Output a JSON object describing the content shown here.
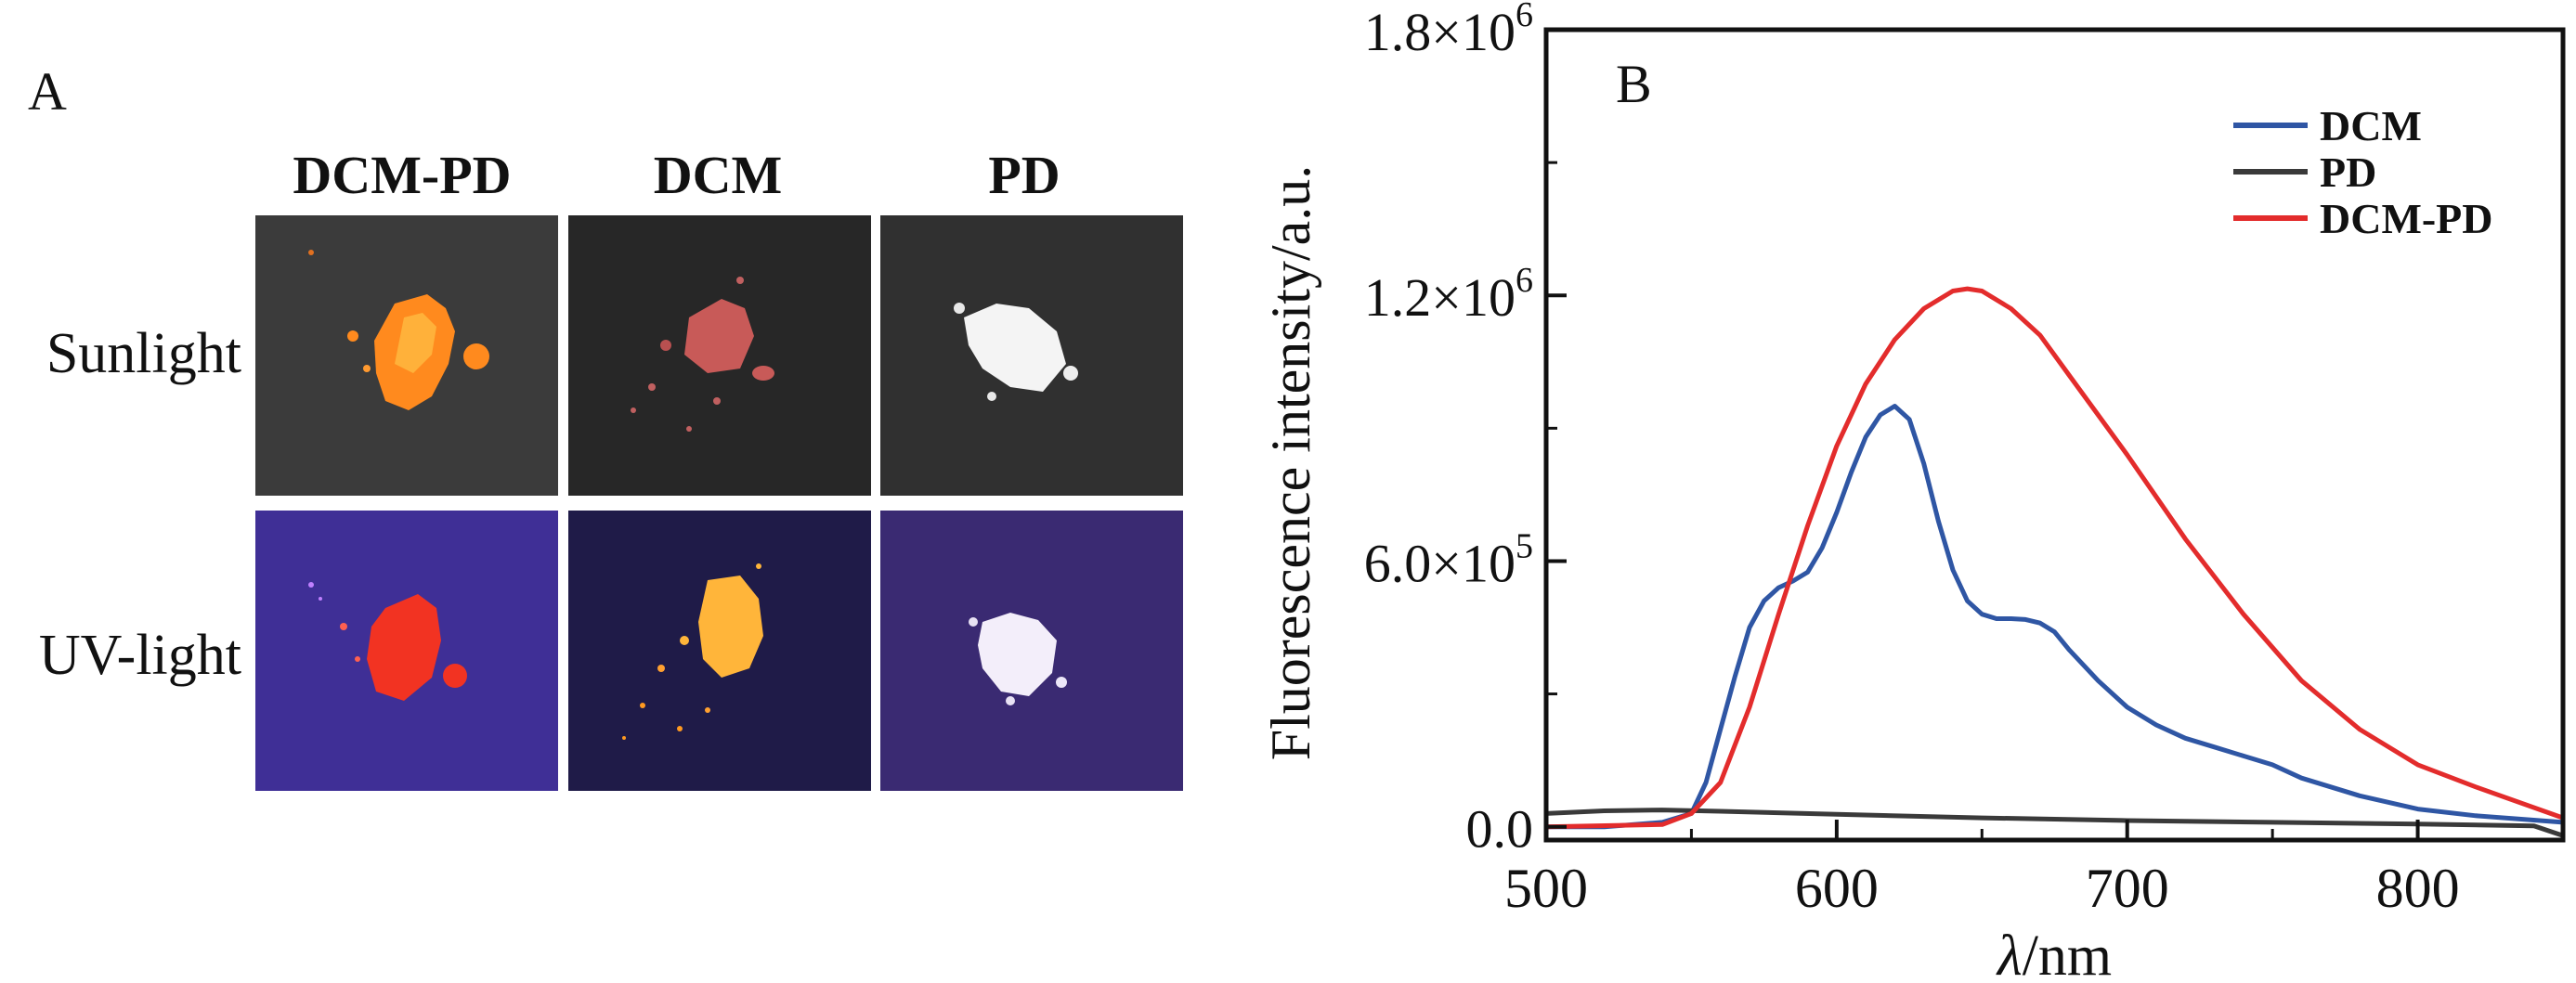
{
  "panel_a": {
    "letter": "A",
    "columns": [
      "DCM-PD",
      "DCM",
      "PD"
    ],
    "rows": [
      "Sunlight",
      "UV-light"
    ],
    "photos": [
      {
        "row": "Sunlight",
        "column": "DCM-PD",
        "background": "#3b3b3b",
        "sample_color": "#ff8a1e"
      },
      {
        "row": "Sunlight",
        "column": "DCM",
        "background": "#272727",
        "sample_color": "#c85a58"
      },
      {
        "row": "Sunlight",
        "column": "PD",
        "background": "#303030",
        "sample_color": "#f4f4f4"
      },
      {
        "row": "UV-light",
        "column": "DCM-PD",
        "background": "#3f2f96",
        "sample_color": "#f23322"
      },
      {
        "row": "UV-light",
        "column": "DCM",
        "background": "#1f1b48",
        "sample_color": "#ffb53a"
      },
      {
        "row": "UV-light",
        "column": "PD",
        "background": "#3a2a72",
        "sample_color": "#f3eefa"
      }
    ]
  },
  "chart_data": {
    "type": "line",
    "panel_letter": "B",
    "xlabel_italic": "λ",
    "xlabel_rest": "/nm",
    "ylabel": "Fluorescence intensity/a.u.",
    "xlim": [
      500,
      850
    ],
    "ylim": [
      -30000,
      1800000
    ],
    "xticks": [
      500,
      600,
      700,
      800
    ],
    "yticks": [
      0,
      600000,
      1200000,
      1800000
    ],
    "ytick_labels": [
      {
        "mantissa": "0.0",
        "exp": ""
      },
      {
        "mantissa": "6.0×10",
        "exp": "5"
      },
      {
        "mantissa": "1.2×10",
        "exp": "6"
      },
      {
        "mantissa": "1.8×10",
        "exp": "6"
      }
    ],
    "legend_position": "top-right",
    "series": [
      {
        "name": "DCM",
        "color": "#2f56a4",
        "x": [
          500,
          520,
          540,
          550,
          555,
          560,
          565,
          570,
          575,
          580,
          585,
          590,
          595,
          600,
          605,
          610,
          615,
          620,
          625,
          630,
          635,
          640,
          645,
          650,
          655,
          660,
          665,
          670,
          675,
          680,
          690,
          700,
          710,
          720,
          730,
          740,
          750,
          760,
          780,
          800,
          820,
          850
        ],
        "y": [
          0,
          0,
          10000,
          30000,
          100000,
          220000,
          340000,
          450000,
          510000,
          540000,
          555000,
          575000,
          630000,
          710000,
          800000,
          880000,
          930000,
          950000,
          920000,
          820000,
          690000,
          580000,
          510000,
          480000,
          470000,
          470000,
          468000,
          460000,
          440000,
          400000,
          330000,
          270000,
          230000,
          200000,
          180000,
          160000,
          140000,
          110000,
          70000,
          40000,
          25000,
          10000
        ]
      },
      {
        "name": "PD",
        "color": "#3a3a3a",
        "x": [
          500,
          520,
          540,
          560,
          600,
          650,
          700,
          750,
          800,
          840,
          850
        ],
        "y": [
          30000,
          36000,
          38000,
          35000,
          28000,
          20000,
          14000,
          10000,
          6000,
          2000,
          -20000
        ]
      },
      {
        "name": "DCM-PD",
        "color": "#e32c2c",
        "x": [
          500,
          540,
          550,
          560,
          570,
          580,
          590,
          600,
          610,
          620,
          630,
          640,
          645,
          650,
          660,
          670,
          680,
          700,
          720,
          740,
          760,
          780,
          800,
          820,
          850
        ],
        "y": [
          0,
          5000,
          30000,
          100000,
          270000,
          480000,
          680000,
          860000,
          1000000,
          1100000,
          1170000,
          1210000,
          1215000,
          1210000,
          1170000,
          1110000,
          1020000,
          840000,
          650000,
          480000,
          330000,
          220000,
          140000,
          90000,
          20000
        ]
      }
    ]
  }
}
